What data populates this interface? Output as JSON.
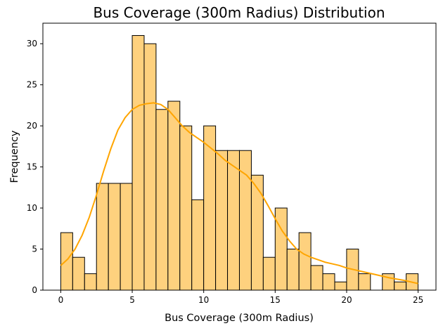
{
  "chart_data": {
    "type": "bar",
    "title": "Bus Coverage (300m Radius) Distribution",
    "xlabel": "Bus Coverage (300m Radius)",
    "ylabel": "Frequency",
    "xlim": [
      -1.25,
      26.25
    ],
    "ylim": [
      0,
      32.5
    ],
    "xticks": [
      0,
      5,
      10,
      15,
      20,
      25
    ],
    "yticks": [
      0,
      5,
      10,
      15,
      20,
      25,
      30
    ],
    "bin_start": 0,
    "bin_width": 0.8333,
    "values": [
      7,
      4,
      2,
      13,
      13,
      13,
      31,
      30,
      22,
      23,
      20,
      11,
      20,
      17,
      17,
      17,
      14,
      4,
      10,
      5,
      7,
      3,
      2,
      1,
      5,
      2,
      0,
      2,
      1,
      2
    ],
    "bar_color": "#fed17e",
    "edge_color": "#000000",
    "kde": {
      "color": "#ffa500",
      "x": [
        0,
        0.5,
        1,
        1.5,
        2,
        2.5,
        3,
        3.5,
        4,
        4.5,
        5,
        5.5,
        6,
        6.5,
        7,
        7.5,
        8,
        8.5,
        9,
        9.5,
        10,
        10.5,
        11,
        11.5,
        12,
        12.5,
        13,
        13.5,
        14,
        14.5,
        15,
        15.5,
        16,
        16.5,
        17,
        17.5,
        18,
        18.5,
        19,
        19.5,
        20,
        21,
        22,
        23,
        24,
        25
      ],
      "y": [
        3.0,
        3.8,
        5.0,
        6.7,
        8.9,
        11.6,
        14.5,
        17.2,
        19.5,
        21.0,
        22.0,
        22.5,
        22.7,
        22.8,
        22.6,
        22.0,
        21.0,
        20.0,
        19.2,
        18.6,
        18.0,
        17.3,
        16.6,
        15.8,
        15.2,
        14.6,
        14.0,
        13.0,
        11.8,
        10.3,
        8.7,
        7.2,
        6.0,
        5.0,
        4.4,
        4.0,
        3.7,
        3.4,
        3.2,
        3.0,
        2.7,
        2.3,
        1.9,
        1.5,
        1.2,
        0.8
      ]
    }
  }
}
